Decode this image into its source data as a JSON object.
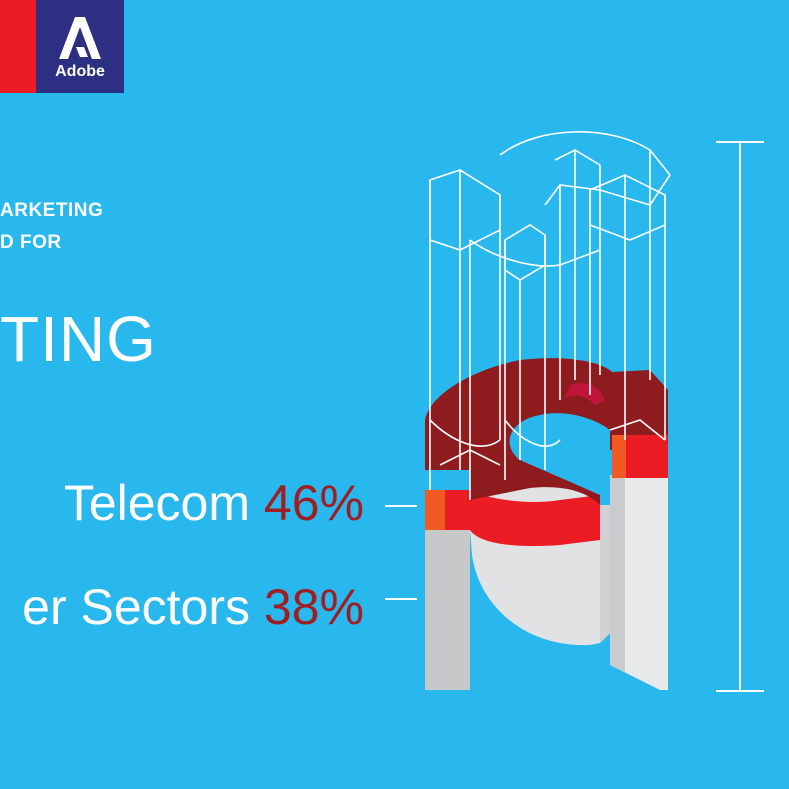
{
  "brand": {
    "logo_text": "Adobe",
    "colors": {
      "background": "#29b8ee",
      "logo_bg": "#2c2f82",
      "red": "#ec1c24",
      "pct_text": "#a01e23"
    }
  },
  "heading": {
    "line1": "ARKETING",
    "line2": "D FOR",
    "big": "TING"
  },
  "chart_data": {
    "type": "bar",
    "categories": [
      "Telecom",
      "er Sectors"
    ],
    "values": [
      46,
      38
    ],
    "value_labels": [
      "46%",
      "38%"
    ],
    "ylim": [
      0,
      100
    ],
    "bar_colors": [
      "#f5a21b",
      "#e2e3e4"
    ]
  }
}
